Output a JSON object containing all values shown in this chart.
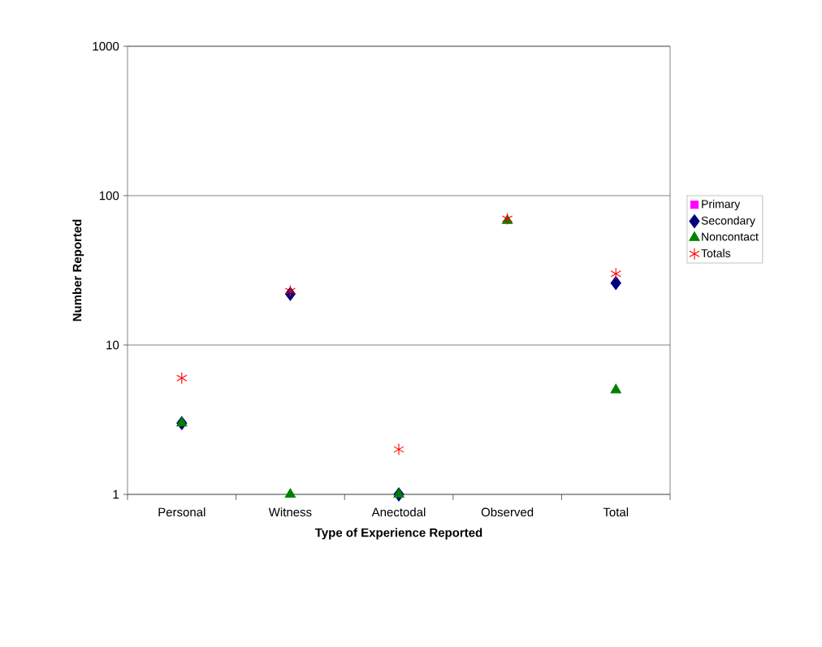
{
  "chart_data": {
    "type": "scatter",
    "xlabel": "Type of Experience Reported",
    "ylabel": "Number Reported",
    "categories": [
      "Personal",
      "Witness",
      "Anectodal",
      "Observed",
      "Total"
    ],
    "series": [
      {
        "name": "Primary",
        "color": "#ff00ff",
        "marker": "square",
        "values": [
          null,
          null,
          null,
          null,
          null
        ]
      },
      {
        "name": "Secondary",
        "color": "#000080",
        "marker": "diamond",
        "values": [
          3,
          22,
          1,
          null,
          26
        ]
      },
      {
        "name": "Noncontact",
        "color": "#008000",
        "marker": "triangle",
        "values": [
          3,
          1,
          1,
          68,
          5
        ]
      },
      {
        "name": "Totals",
        "color": "#ff0000",
        "marker": "cross",
        "values": [
          6,
          23,
          2,
          70,
          30
        ]
      }
    ],
    "log": "y",
    "ylim": [
      1,
      1000
    ],
    "yticks": [
      1,
      10,
      100,
      1000
    ],
    "grid": "y",
    "legend": "right"
  }
}
